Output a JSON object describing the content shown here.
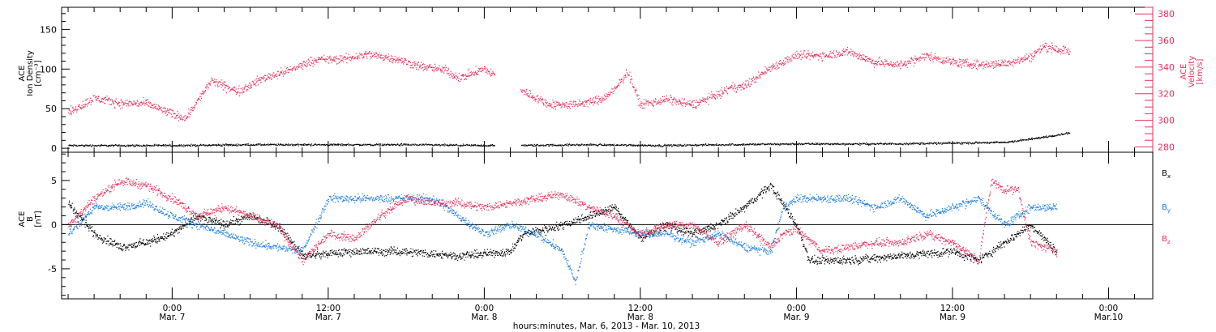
{
  "chart_data": [
    {
      "type": "scatter",
      "panel": "top",
      "ylabel_lines": [
        "ACE",
        "Ion Density",
        "[cm⁻³]"
      ],
      "y2label_lines": [
        "ACE",
        "Velocity",
        "[km/s]"
      ],
      "ylim": [
        -5,
        178
      ],
      "yticks": [
        0,
        50,
        100,
        150
      ],
      "y2lim": [
        276,
        385
      ],
      "y2ticks": [
        280,
        300,
        320,
        340,
        360,
        380
      ],
      "series": [
        {
          "color": "#000000",
          "axis": "left",
          "keypoints": [
            [
              -8,
              4
            ],
            [
              0,
              4
            ],
            [
              6,
              5
            ],
            [
              12,
              5
            ],
            [
              18,
              5
            ],
            [
              24,
              4
            ],
            [
              26,
              4
            ],
            [
              32,
              5
            ],
            [
              38,
              4
            ],
            [
              42,
              5
            ],
            [
              48,
              6
            ],
            [
              54,
              6
            ],
            [
              60,
              7
            ],
            [
              64,
              8
            ],
            [
              66,
              12
            ],
            [
              69,
              20
            ]
          ],
          "gaps": [
            [
              24.8,
              26.8
            ]
          ]
        },
        {
          "color": "#e8305c",
          "axis": "right",
          "keypoints": [
            [
              -8,
              306
            ],
            [
              -6,
              317
            ],
            [
              -4,
              313
            ],
            [
              -2,
              313
            ],
            [
              0,
              305
            ],
            [
              1,
              302
            ],
            [
              3,
              330
            ],
            [
              5,
              322
            ],
            [
              7,
              332
            ],
            [
              9,
              338
            ],
            [
              11,
              346
            ],
            [
              13,
              346
            ],
            [
              15,
              350
            ],
            [
              17,
              347
            ],
            [
              19,
              341
            ],
            [
              21,
              338
            ],
            [
              22,
              332
            ],
            [
              24,
              339
            ],
            [
              26,
              326
            ],
            [
              27,
              322
            ],
            [
              29,
              312
            ],
            [
              31,
              312
            ],
            [
              33,
              316
            ],
            [
              34,
              323
            ],
            [
              35,
              337
            ],
            [
              36,
              312
            ],
            [
              38,
              316
            ],
            [
              40,
              312
            ],
            [
              42,
              320
            ],
            [
              43,
              325
            ],
            [
              44,
              326
            ],
            [
              46,
              340
            ],
            [
              48,
              349
            ],
            [
              50,
              349
            ],
            [
              52,
              352
            ],
            [
              54,
              344
            ],
            [
              56,
              342
            ],
            [
              58,
              349
            ],
            [
              60,
              344
            ],
            [
              62,
              342
            ],
            [
              64,
              343
            ],
            [
              66,
              348
            ],
            [
              67,
              356
            ],
            [
              69,
              352
            ]
          ],
          "gaps": [
            [
              24.8,
              26.8
            ]
          ]
        }
      ]
    },
    {
      "type": "scatter",
      "panel": "bottom",
      "ylabel_lines": [
        "ACE",
        "B",
        "[nT]"
      ],
      "ylim": [
        -8.4,
        8.2
      ],
      "yticks": [
        -5,
        0,
        5
      ],
      "zero_line": true,
      "series": [
        {
          "name": "Bx",
          "label_main": "B",
          "label_sub": "x",
          "color": "#000000",
          "keypoints": [
            [
              -8,
              2.5
            ],
            [
              -6,
              -1
            ],
            [
              -4,
              -2.5
            ],
            [
              -2,
              -2
            ],
            [
              0,
              -1
            ],
            [
              2,
              1
            ],
            [
              4,
              0
            ],
            [
              6,
              1
            ],
            [
              8,
              0
            ],
            [
              9,
              -1.5
            ],
            [
              10,
              -3.5
            ],
            [
              14,
              -3
            ],
            [
              18,
              -3
            ],
            [
              22,
              -3.5
            ],
            [
              26,
              -3
            ],
            [
              27,
              -1
            ],
            [
              30,
              0
            ],
            [
              32,
              1
            ],
            [
              34,
              2
            ],
            [
              36,
              -1.5
            ],
            [
              38,
              0
            ],
            [
              40,
              -1
            ],
            [
              42,
              0
            ],
            [
              44,
              2
            ],
            [
              46,
              4.5
            ],
            [
              48,
              0
            ],
            [
              49,
              -4
            ],
            [
              52,
              -4
            ],
            [
              56,
              -3.5
            ],
            [
              60,
              -3
            ],
            [
              62,
              -4
            ],
            [
              64,
              -2
            ],
            [
              66,
              0
            ],
            [
              68,
              -3
            ]
          ]
        },
        {
          "name": "By",
          "label_main": "B",
          "label_sub": "y",
          "color": "#1f7fdd",
          "keypoints": [
            [
              -8,
              -1
            ],
            [
              -6,
              2
            ],
            [
              -4,
              2
            ],
            [
              -2,
              2.5
            ],
            [
              0,
              1
            ],
            [
              2,
              0
            ],
            [
              4,
              -1
            ],
            [
              6,
              -2
            ],
            [
              8,
              -2.5
            ],
            [
              10,
              -3
            ],
            [
              12,
              3
            ],
            [
              14,
              3
            ],
            [
              16,
              3
            ],
            [
              18,
              3
            ],
            [
              20,
              3
            ],
            [
              22,
              1
            ],
            [
              24,
              -1
            ],
            [
              26,
              0
            ],
            [
              28,
              -1
            ],
            [
              30,
              -3
            ],
            [
              31,
              -6.5
            ],
            [
              32,
              0
            ],
            [
              34,
              -0.5
            ],
            [
              36,
              -1
            ],
            [
              38,
              -1
            ],
            [
              40,
              -2
            ],
            [
              42,
              -1
            ],
            [
              44,
              -2.5
            ],
            [
              46,
              -3
            ],
            [
              47,
              2
            ],
            [
              48,
              3
            ],
            [
              50,
              3
            ],
            [
              52,
              3
            ],
            [
              54,
              2
            ],
            [
              56,
              3
            ],
            [
              58,
              1
            ],
            [
              60,
              2
            ],
            [
              62,
              3
            ],
            [
              64,
              0
            ],
            [
              66,
              2
            ],
            [
              68,
              2
            ]
          ]
        },
        {
          "name": "Bz",
          "label_main": "B",
          "label_sub": "z",
          "color": "#e8305c",
          "keypoints": [
            [
              -8,
              0
            ],
            [
              -6,
              3
            ],
            [
              -4,
              5
            ],
            [
              -2,
              4.5
            ],
            [
              0,
              3
            ],
            [
              2,
              1
            ],
            [
              4,
              2
            ],
            [
              6,
              1
            ],
            [
              8,
              0
            ],
            [
              9,
              -2
            ],
            [
              10,
              -4
            ],
            [
              12,
              -1
            ],
            [
              14,
              -1.5
            ],
            [
              16,
              1
            ],
            [
              18,
              3
            ],
            [
              20,
              2.5
            ],
            [
              22,
              2.5
            ],
            [
              24,
              2
            ],
            [
              26,
              2.5
            ],
            [
              28,
              3
            ],
            [
              30,
              3.5
            ],
            [
              32,
              2
            ],
            [
              34,
              1
            ],
            [
              36,
              -1
            ],
            [
              38,
              0
            ],
            [
              40,
              0
            ],
            [
              42,
              -2
            ],
            [
              44,
              0
            ],
            [
              46,
              -2.5
            ],
            [
              47,
              -1
            ],
            [
              48,
              -0.5
            ],
            [
              50,
              -3
            ],
            [
              52,
              -2.5
            ],
            [
              54,
              -2
            ],
            [
              56,
              -2
            ],
            [
              58,
              -1
            ],
            [
              60,
              -2
            ],
            [
              62,
              -4
            ],
            [
              63,
              5
            ],
            [
              64,
              4
            ],
            [
              65,
              4
            ],
            [
              66,
              -2
            ],
            [
              68,
              -3
            ]
          ]
        }
      ]
    }
  ],
  "xaxis": {
    "tick_labels": [
      {
        "hours": 0,
        "time": "0:00",
        "date": "Mar. 7"
      },
      {
        "hours": 12,
        "time": "12:00",
        "date": "Mar. 7"
      },
      {
        "hours": 24,
        "time": "0:00",
        "date": "Mar. 8"
      },
      {
        "hours": 36,
        "time": "12:00",
        "date": "Mar. 8"
      },
      {
        "hours": 48,
        "time": "0:00",
        "date": "Mar. 9"
      },
      {
        "hours": 60,
        "time": "12:00",
        "date": "Mar. 9"
      },
      {
        "hours": 72,
        "time": "0:00",
        "date": "Mar.10"
      }
    ],
    "xlim_hours": [
      -8.5,
      75.4
    ],
    "caption": "hours:minutes, Mar.  6, 2013 - Mar. 10, 2013"
  },
  "colors": {
    "black": "#000000",
    "pink": "#e8305c",
    "blue": "#1f7fdd"
  }
}
